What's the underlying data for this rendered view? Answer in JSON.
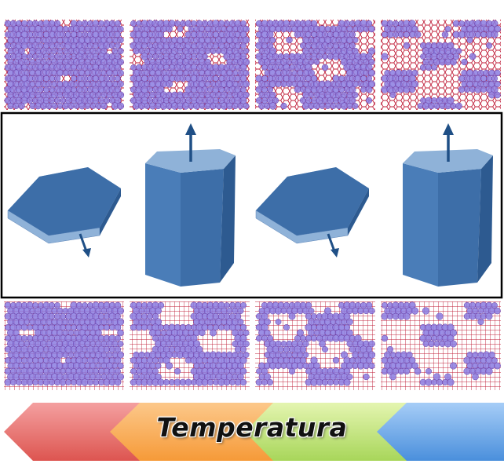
{
  "axis_label": "Temperatura",
  "colors": {
    "particle": "#8a7be0",
    "bond": "#c0203a",
    "prism": "#3d6ea8",
    "prism_light": "#8fb2d8",
    "arrow": "#1f4f86",
    "temperature_segments": [
      "#e65a55",
      "#f7a24a",
      "#b6dc6c",
      "#5b9be0"
    ]
  },
  "top_row": {
    "panels": [
      {
        "void_fraction": 0.02
      },
      {
        "void_fraction": 0.08
      },
      {
        "void_fraction": 0.2
      },
      {
        "void_fraction": 0.35
      }
    ]
  },
  "bottom_row": {
    "panels": [
      {
        "void_fraction": 0.05
      },
      {
        "void_fraction": 0.25
      },
      {
        "void_fraction": 0.3
      },
      {
        "void_fraction": 0.4
      }
    ]
  },
  "prisms": [
    "plate",
    "column",
    "plate",
    "column"
  ]
}
